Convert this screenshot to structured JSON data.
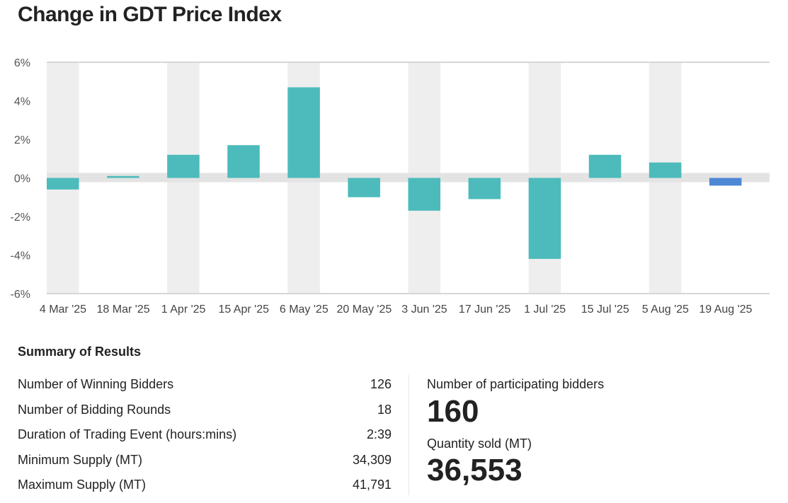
{
  "title": "Change in GDT Price Index",
  "chart_data": {
    "type": "bar",
    "categories": [
      "4 Mar '25",
      "18 Mar '25",
      "1 Apr '25",
      "15 Apr '25",
      "6 May '25",
      "20 May '25",
      "3 Jun '25",
      "17 Jun '25",
      "1 Jul '25",
      "15 Jul '25",
      "5 Aug '25",
      "19 Aug '25"
    ],
    "values": [
      -0.6,
      0.1,
      1.2,
      1.7,
      4.7,
      -1.0,
      -1.7,
      -1.1,
      -4.2,
      1.2,
      0.8,
      -0.4
    ],
    "ylim": [
      -6,
      6
    ],
    "yticks": [
      "6%",
      "4%",
      "2%",
      "0%",
      "-2%",
      "-4%",
      "-6%"
    ],
    "ytick_values": [
      6,
      4,
      2,
      0,
      -2,
      -4,
      -6
    ],
    "xlabel": "",
    "ylabel": "",
    "colors": {
      "bar": "#4dbbbb",
      "highlight": "#4c88d6",
      "band": "#eeeeee"
    }
  },
  "summary": {
    "title": "Summary of Results",
    "rows": [
      {
        "label": "Number of Winning Bidders",
        "value": "126"
      },
      {
        "label": "Number of Bidding Rounds",
        "value": "18"
      },
      {
        "label": "Duration of Trading Event (hours:mins)",
        "value": "2:39"
      },
      {
        "label": "Minimum Supply (MT)",
        "value": "34,309"
      },
      {
        "label": "Maximum Supply (MT)",
        "value": "41,791"
      }
    ],
    "participating_label": "Number of participating bidders",
    "participating_value": "160",
    "quantity_label": "Quantity sold (MT)",
    "quantity_value": "36,553"
  }
}
